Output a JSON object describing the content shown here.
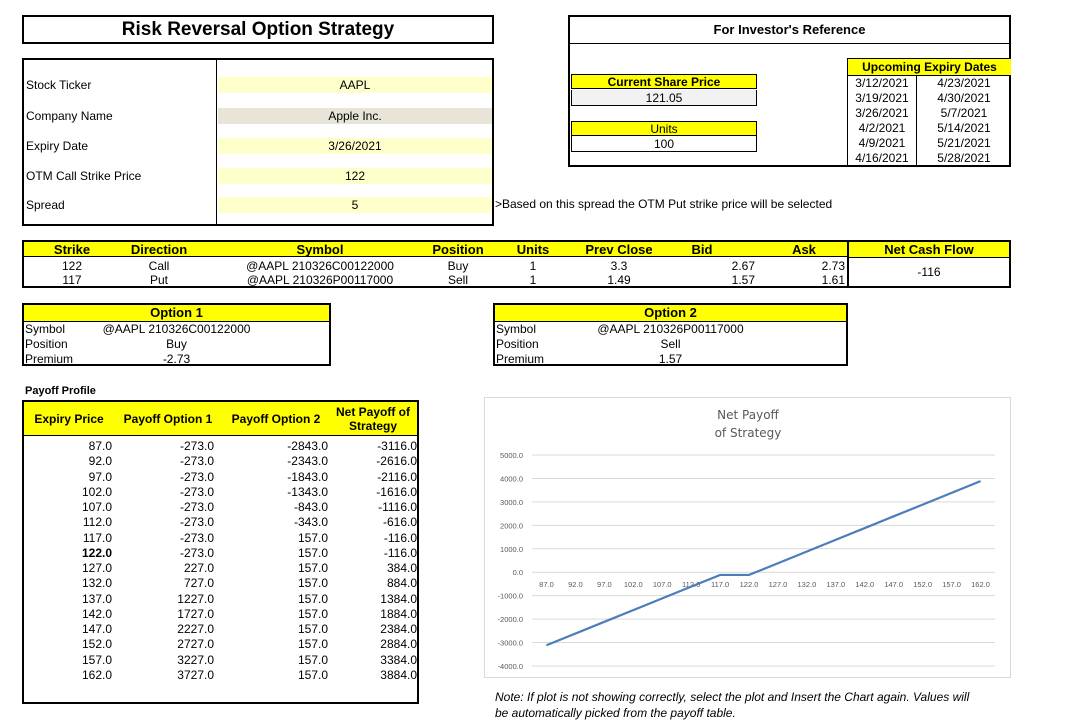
{
  "title": "Risk Reversal Option Strategy",
  "inputs": [
    {
      "label": "Stock Ticker",
      "value": "AAPL",
      "bg": "#ffffcc"
    },
    {
      "label": "Company Name",
      "value": "Apple Inc.",
      "bg": "#e8e4d8"
    },
    {
      "label": "Expiry Date",
      "value": "3/26/2021",
      "bg": "#ffffcc"
    },
    {
      "label": "OTM Call Strike Price",
      "value": "122",
      "bg": "#ffffcc"
    },
    {
      "label": "Spread",
      "value": "5",
      "bg": "#ffffcc"
    }
  ],
  "spread_note": ">Based on this spread the OTM Put strike price will be selected",
  "reference": {
    "title": "For Investor's Reference",
    "share_price_label": "Current Share Price",
    "share_price": "121.05",
    "units_label": "Units",
    "units": "100",
    "expiry_label": "Upcoming Expiry Dates",
    "expiry_col1": [
      "3/12/2021",
      "3/19/2021",
      "3/26/2021",
      "4/2/2021",
      "4/9/2021",
      "4/16/2021"
    ],
    "expiry_col2": [
      "4/23/2021",
      "4/30/2021",
      "5/7/2021",
      "5/14/2021",
      "5/21/2021",
      "5/28/2021"
    ]
  },
  "trade": {
    "headers": [
      "Strike",
      "Direction",
      "Symbol",
      "Position",
      "Units",
      "Prev Close",
      "Bid",
      "Ask",
      "Net Cash Flow"
    ],
    "rows": [
      [
        "122",
        "Call",
        "@AAPL  210326C00122000",
        "Buy",
        "1",
        "3.3",
        "2.67",
        "2.73"
      ],
      [
        "117",
        "Put",
        "@AAPL  210326P00117000",
        "Sell",
        "1",
        "1.49",
        "1.57",
        "1.61"
      ]
    ],
    "net_cash_flow": "-116"
  },
  "option1": {
    "title": "Option 1",
    "labels": [
      "Symbol",
      "Position",
      "Premium"
    ],
    "values": [
      "@AAPL  210326C00122000",
      "Buy",
      "-2.73"
    ]
  },
  "option2": {
    "title": "Option 2",
    "labels": [
      "Symbol",
      "Position",
      "Premium"
    ],
    "values": [
      "@AAPL  210326P00117000",
      "Sell",
      "1.57"
    ]
  },
  "payoff": {
    "label": "Payoff Profile",
    "headers": [
      "Expiry Price",
      "Payoff Option 1",
      "Payoff Option 2",
      "Net Payoff of Strategy"
    ],
    "rows": [
      [
        "87.0",
        "-273.0",
        "-2843.0",
        "-3116.0"
      ],
      [
        "92.0",
        "-273.0",
        "-2343.0",
        "-2616.0"
      ],
      [
        "97.0",
        "-273.0",
        "-1843.0",
        "-2116.0"
      ],
      [
        "102.0",
        "-273.0",
        "-1343.0",
        "-1616.0"
      ],
      [
        "107.0",
        "-273.0",
        "-843.0",
        "-1116.0"
      ],
      [
        "112.0",
        "-273.0",
        "-343.0",
        "-616.0"
      ],
      [
        "117.0",
        "-273.0",
        "157.0",
        "-116.0"
      ],
      [
        "122.0",
        "-273.0",
        "157.0",
        "-116.0"
      ],
      [
        "127.0",
        "227.0",
        "157.0",
        "384.0"
      ],
      [
        "132.0",
        "727.0",
        "157.0",
        "884.0"
      ],
      [
        "137.0",
        "1227.0",
        "157.0",
        "1384.0"
      ],
      [
        "142.0",
        "1727.0",
        "157.0",
        "1884.0"
      ],
      [
        "147.0",
        "2227.0",
        "157.0",
        "2384.0"
      ],
      [
        "152.0",
        "2727.0",
        "157.0",
        "2884.0"
      ],
      [
        "157.0",
        "3227.0",
        "157.0",
        "3384.0"
      ],
      [
        "162.0",
        "3727.0",
        "157.0",
        "3884.0"
      ]
    ],
    "bold_row": 7
  },
  "chart_data": {
    "type": "line",
    "title": "Net Payoff of Strategy",
    "title_lines": [
      "Net Payoff",
      "of Strategy"
    ],
    "x": [
      "87.0",
      "92.0",
      "97.0",
      "102.0",
      "107.0",
      "112.0",
      "117.0",
      "122.0",
      "127.0",
      "132.0",
      "137.0",
      "142.0",
      "147.0",
      "152.0",
      "157.0",
      "162.0"
    ],
    "y": [
      -3116,
      -2616,
      -2116,
      -1616,
      -1116,
      -616,
      -116,
      -116,
      384,
      884,
      1384,
      1884,
      2384,
      2884,
      3384,
      3884
    ],
    "ylim": [
      -4000,
      5000
    ],
    "yticks": [
      "5000.0",
      "4000.0",
      "3000.0",
      "2000.0",
      "1000.0",
      "0.0",
      "-1000.0",
      "-2000.0",
      "-3000.0",
      "-4000.0"
    ],
    "grid": true,
    "color": "#4a7ebb"
  },
  "footer_note": [
    "Note: If plot is not showing correctly, select the plot and Insert the Chart again. Values will",
    "be automatically picked from the payoff table."
  ]
}
